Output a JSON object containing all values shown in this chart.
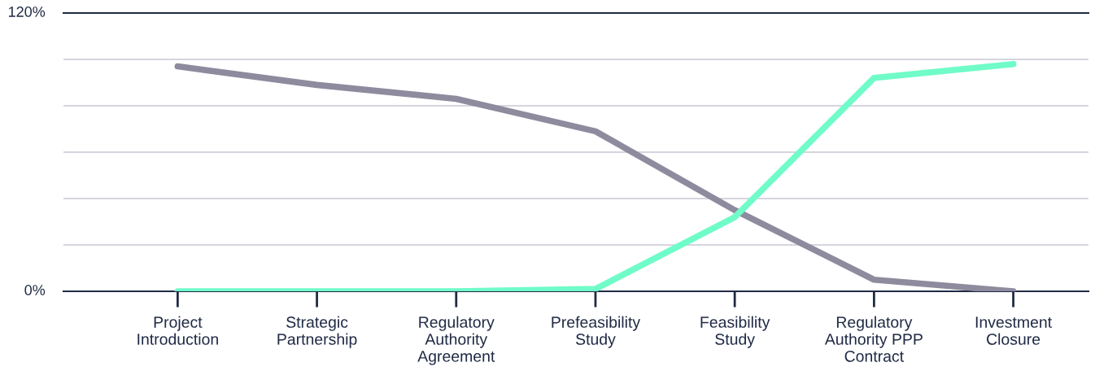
{
  "chart_data": {
    "type": "line",
    "categories": [
      "Project\nIntroduction",
      "Strategic\nPartnership",
      "Regulatory\nAuthority\nAgreement",
      "Prefeasibility\nStudy",
      "Feasibility\nStudy",
      "Regulatory\nAuthority PPP\nContract",
      "Investment\nClosure"
    ],
    "series": [
      {
        "color": "#8e8b9e",
        "values": [
          97,
          89,
          83,
          69,
          35,
          5,
          0
        ]
      },
      {
        "color": "#6ffcc8",
        "values": [
          0,
          0,
          0,
          1,
          32,
          92,
          98
        ]
      }
    ],
    "ylim": [
      0,
      120
    ],
    "yticks": [
      {
        "value": 0,
        "label": "0%"
      },
      {
        "value": 20,
        "label": null
      },
      {
        "value": 40,
        "label": null
      },
      {
        "value": 60,
        "label": null
      },
      {
        "value": 80,
        "label": null
      },
      {
        "value": 100,
        "label": null
      },
      {
        "value": 120,
        "label": "120%"
      }
    ],
    "grid": "y",
    "marker": "none",
    "line_style": "solid",
    "legend": false
  }
}
